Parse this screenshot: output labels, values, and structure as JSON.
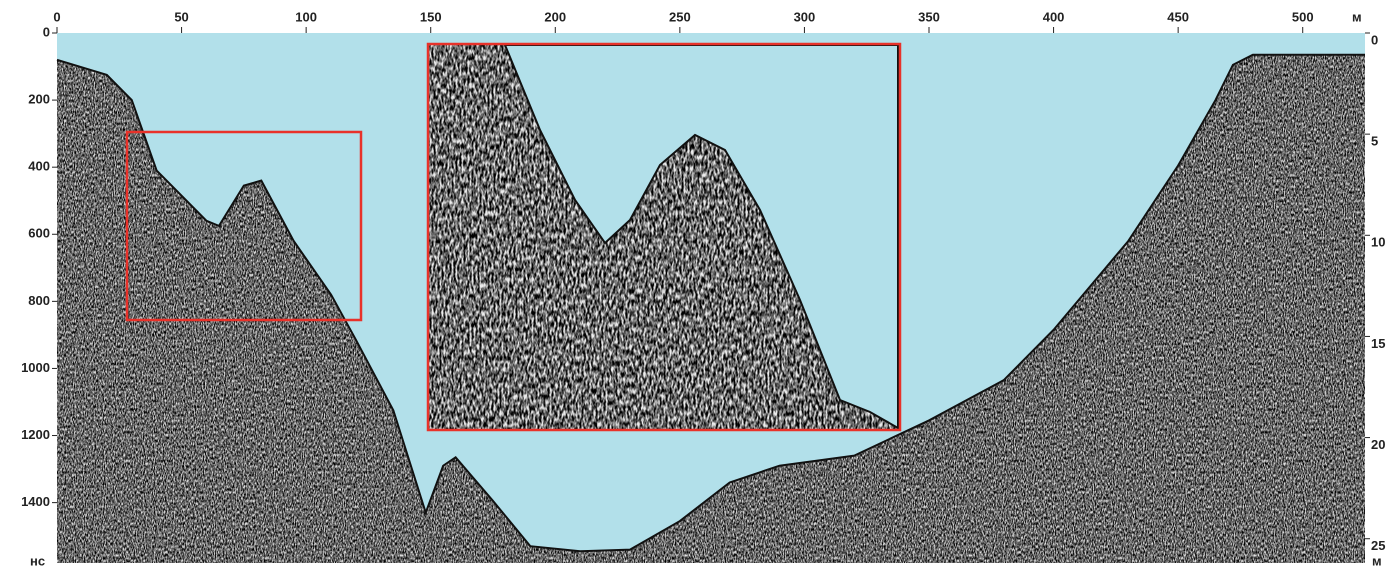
{
  "chart_data": {
    "type": "profile",
    "x_label": "м",
    "y_label": "нс",
    "y2_label": "м",
    "xlim": [
      0,
      525
    ],
    "xticks": [
      0,
      50,
      100,
      150,
      200,
      250,
      300,
      350,
      400,
      450,
      500
    ],
    "ylim": [
      0,
      1580
    ],
    "yticks": [
      0,
      200,
      400,
      600,
      800,
      1000,
      1200,
      1400
    ],
    "y2lim": [
      0,
      26.2
    ],
    "y2ticks": [
      0,
      5,
      10,
      15,
      20,
      25
    ],
    "water_color": "#b2e0ea",
    "box_color": "#e8322a",
    "x": [
      0,
      20,
      30,
      40,
      60,
      65,
      75,
      82,
      95,
      110,
      120,
      135,
      148,
      155,
      160,
      175,
      190,
      210,
      230,
      250,
      270,
      290,
      320,
      350,
      380,
      400,
      430,
      450,
      465,
      472,
      480,
      525
    ],
    "values": [
      80,
      125,
      200,
      410,
      560,
      575,
      455,
      440,
      620,
      780,
      915,
      1125,
      1430,
      1290,
      1265,
      1395,
      1530,
      1545,
      1540,
      1455,
      1340,
      1290,
      1260,
      1155,
      1035,
      885,
      620,
      395,
      200,
      95,
      65,
      65
    ]
  }
}
